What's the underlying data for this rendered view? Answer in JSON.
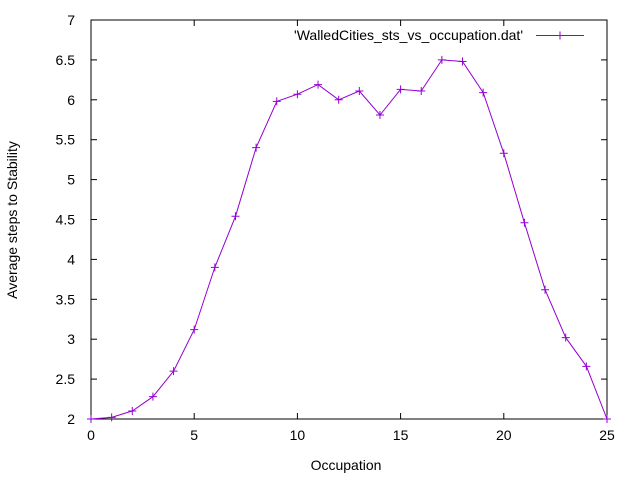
{
  "chart_data": {
    "type": "line",
    "title": "",
    "xlabel": "Occupation",
    "ylabel": "Average steps to Stability",
    "xlim": [
      0,
      25
    ],
    "ylim": [
      2,
      7
    ],
    "x_ticks": [
      0,
      5,
      10,
      15,
      20,
      25
    ],
    "y_ticks": [
      2,
      2.5,
      3,
      3.5,
      4,
      4.5,
      5,
      5.5,
      6,
      6.5,
      7
    ],
    "x_tick_labels": [
      "0",
      "5",
      "10",
      "15",
      "20",
      "25"
    ],
    "y_tick_labels": [
      "2",
      "2.5",
      "3",
      "3.5",
      "4",
      "4.5",
      "5",
      "5.5",
      "6",
      "6.5",
      "7"
    ],
    "grid": false,
    "legend_position": "top-right",
    "series": [
      {
        "name": "'WalledCities_sts_vs_occupation.dat'",
        "color": "#9400d3",
        "marker": "plus",
        "x": [
          0,
          1,
          2,
          3,
          4,
          5,
          6,
          7,
          8,
          9,
          10,
          11,
          12,
          13,
          14,
          15,
          16,
          17,
          18,
          19,
          20,
          21,
          22,
          23,
          24,
          25
        ],
        "y": [
          2.0,
          2.02,
          2.1,
          2.28,
          2.6,
          3.12,
          3.9,
          4.54,
          5.4,
          5.98,
          6.07,
          6.19,
          6.0,
          6.11,
          5.81,
          6.13,
          6.11,
          6.5,
          6.48,
          6.09,
          5.33,
          4.46,
          3.62,
          3.02,
          2.66,
          2.0
        ]
      }
    ]
  }
}
